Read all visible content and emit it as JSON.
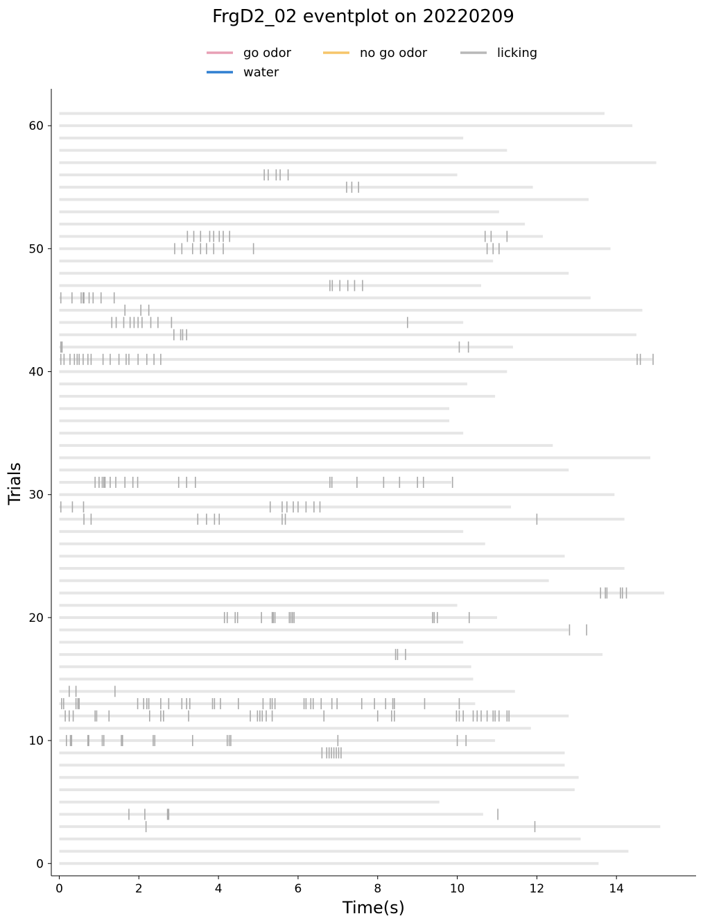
{
  "chart_data": {
    "type": "eventplot",
    "title": "FrgD2_02 eventplot on 20220209",
    "xlabel": "Time(s)",
    "ylabel": "Trials",
    "xlim": [
      -0.2,
      16
    ],
    "ylim": [
      -1,
      63
    ],
    "xticks": [
      0,
      2,
      4,
      6,
      8,
      10,
      12,
      14
    ],
    "yticks": [
      0,
      10,
      20,
      30,
      40,
      50,
      60
    ],
    "grid": false,
    "legend": {
      "position": "top-center",
      "entries": [
        {
          "name": "go odor",
          "color": "#e8a0b5",
          "kind": "line"
        },
        {
          "name": "no go odor",
          "color": "#f6c56a",
          "kind": "line"
        },
        {
          "name": "licking",
          "color": "#b8b8b8",
          "kind": "line"
        },
        {
          "name": "water",
          "color": "#2f7fd1",
          "kind": "line"
        }
      ]
    },
    "colors": {
      "trial_bar": "#e6e6e6",
      "lick": "#a9a9a9"
    },
    "trials": [
      {
        "trial": 0,
        "end": 13.55,
        "licks": []
      },
      {
        "trial": 1,
        "end": 14.3,
        "licks": []
      },
      {
        "trial": 2,
        "end": 13.1,
        "licks": []
      },
      {
        "trial": 3,
        "end": 15.1,
        "licks": [
          2.18,
          11.95
        ]
      },
      {
        "trial": 4,
        "end": 10.65,
        "licks": [
          1.75,
          2.15,
          2.72,
          2.75,
          11.02
        ]
      },
      {
        "trial": 5,
        "end": 9.55,
        "licks": []
      },
      {
        "trial": 6,
        "end": 12.95,
        "licks": []
      },
      {
        "trial": 7,
        "end": 13.05,
        "licks": []
      },
      {
        "trial": 8,
        "end": 12.7,
        "licks": []
      },
      {
        "trial": 9,
        "end": 12.7,
        "licks": [
          6.6,
          6.72,
          6.78,
          6.84,
          6.9,
          6.96,
          7.02,
          7.08
        ]
      },
      {
        "trial": 10,
        "end": 10.95,
        "licks": [
          0.18,
          0.28,
          0.31,
          0.72,
          0.74,
          1.08,
          1.12,
          1.56,
          1.59,
          2.36,
          2.4,
          3.35,
          4.22,
          4.27,
          4.31,
          7.0,
          10.0,
          10.22
        ]
      },
      {
        "trial": 11,
        "end": 11.85,
        "licks": []
      },
      {
        "trial": 12,
        "end": 12.8,
        "licks": [
          0.15,
          0.25,
          0.35,
          0.9,
          0.94,
          1.25,
          2.27,
          2.55,
          2.62,
          3.25,
          4.8,
          4.98,
          5.04,
          5.1,
          5.2,
          5.35,
          6.65,
          8.0,
          8.35,
          8.42,
          9.98,
          10.05,
          10.15,
          10.4,
          10.5,
          10.6,
          10.75,
          10.9,
          10.95,
          11.05,
          11.25,
          11.3
        ]
      },
      {
        "trial": 13,
        "end": 10.45,
        "licks": [
          0.06,
          0.11,
          0.42,
          0.47,
          0.5,
          1.97,
          2.12,
          2.2,
          2.25,
          2.55,
          2.75,
          3.08,
          3.2,
          3.28,
          3.85,
          3.9,
          4.05,
          4.5,
          5.12,
          5.3,
          5.35,
          5.42,
          6.15,
          6.2,
          6.32,
          6.38,
          6.58,
          6.85,
          6.98,
          7.6,
          7.92,
          8.2,
          8.38,
          8.42,
          9.18,
          10.05
        ]
      },
      {
        "trial": 14,
        "end": 11.45,
        "licks": [
          0.25,
          0.42,
          1.4
        ]
      },
      {
        "trial": 15,
        "end": 10.4,
        "licks": []
      },
      {
        "trial": 16,
        "end": 10.35,
        "licks": []
      },
      {
        "trial": 17,
        "end": 13.65,
        "licks": [
          8.45,
          8.5,
          8.7
        ]
      },
      {
        "trial": 18,
        "end": 10.15,
        "licks": []
      },
      {
        "trial": 19,
        "end": 12.8,
        "licks": [
          12.82,
          13.25
        ]
      },
      {
        "trial": 20,
        "end": 11.0,
        "licks": [
          4.15,
          4.22,
          4.42,
          4.48,
          5.08,
          5.35,
          5.38,
          5.42,
          5.78,
          5.82,
          5.86,
          5.9,
          9.38,
          9.42,
          9.5,
          10.3
        ]
      },
      {
        "trial": 21,
        "end": 10.0,
        "licks": []
      },
      {
        "trial": 22,
        "end": 15.2,
        "licks": [
          13.6,
          13.72,
          13.76,
          14.1,
          14.15,
          14.25
        ]
      },
      {
        "trial": 23,
        "end": 12.3,
        "licks": []
      },
      {
        "trial": 24,
        "end": 14.2,
        "licks": []
      },
      {
        "trial": 25,
        "end": 12.7,
        "licks": []
      },
      {
        "trial": 26,
        "end": 10.7,
        "licks": []
      },
      {
        "trial": 27,
        "end": 10.15,
        "licks": []
      },
      {
        "trial": 28,
        "end": 14.2,
        "licks": [
          0.62,
          0.8,
          3.48,
          3.7,
          3.9,
          4.02,
          5.6,
          5.68,
          12.0
        ]
      },
      {
        "trial": 29,
        "end": 11.35,
        "licks": [
          0.04,
          0.33,
          0.61,
          5.3,
          5.6,
          5.72,
          5.88,
          6.0,
          6.2,
          6.4,
          6.55
        ]
      },
      {
        "trial": 30,
        "end": 13.95,
        "licks": []
      },
      {
        "trial": 31,
        "end": 9.85,
        "licks": [
          0.9,
          1.0,
          1.08,
          1.12,
          1.15,
          1.28,
          1.42,
          1.65,
          1.85,
          1.97,
          3.0,
          3.2,
          3.42,
          6.8,
          6.85,
          7.48,
          8.15,
          8.55,
          9.0,
          9.15,
          9.88
        ]
      },
      {
        "trial": 32,
        "end": 12.8,
        "licks": []
      },
      {
        "trial": 33,
        "end": 14.85,
        "licks": []
      },
      {
        "trial": 34,
        "end": 12.4,
        "licks": []
      },
      {
        "trial": 35,
        "end": 10.15,
        "licks": []
      },
      {
        "trial": 36,
        "end": 9.8,
        "licks": []
      },
      {
        "trial": 37,
        "end": 9.8,
        "licks": []
      },
      {
        "trial": 38,
        "end": 10.95,
        "licks": []
      },
      {
        "trial": 39,
        "end": 10.25,
        "licks": []
      },
      {
        "trial": 40,
        "end": 11.25,
        "licks": []
      },
      {
        "trial": 41,
        "end": 14.9,
        "licks": [
          0.04,
          0.12,
          0.27,
          0.38,
          0.45,
          0.5,
          0.6,
          0.72,
          0.8,
          1.1,
          1.28,
          1.5,
          1.68,
          1.75,
          1.98,
          2.2,
          2.38,
          2.55,
          14.52,
          14.6,
          14.92
        ]
      },
      {
        "trial": 42,
        "end": 11.4,
        "licks": [
          0.04,
          0.07,
          10.05,
          10.28
        ]
      },
      {
        "trial": 43,
        "end": 14.5,
        "licks": [
          2.88,
          3.05,
          3.1,
          3.2
        ]
      },
      {
        "trial": 44,
        "end": 10.15,
        "licks": [
          1.32,
          1.43,
          1.62,
          1.78,
          1.88,
          1.98,
          2.08,
          2.3,
          2.48,
          2.82,
          8.75
        ]
      },
      {
        "trial": 45,
        "end": 14.65,
        "licks": [
          1.65,
          2.05,
          2.25
        ]
      },
      {
        "trial": 46,
        "end": 13.35,
        "licks": [
          0.04,
          0.32,
          0.55,
          0.6,
          0.62,
          0.75,
          0.85,
          1.05,
          1.38
        ]
      },
      {
        "trial": 47,
        "end": 10.6,
        "licks": [
          6.8,
          6.86,
          7.05,
          7.25,
          7.42,
          7.62
        ]
      },
      {
        "trial": 48,
        "end": 12.8,
        "licks": []
      },
      {
        "trial": 49,
        "end": 10.9,
        "licks": []
      },
      {
        "trial": 50,
        "end": 13.85,
        "licks": [
          2.9,
          3.08,
          3.35,
          3.55,
          3.7,
          3.88,
          4.12,
          4.88,
          10.75,
          10.9,
          11.05
        ]
      },
      {
        "trial": 51,
        "end": 12.15,
        "licks": [
          3.22,
          3.38,
          3.55,
          3.78,
          3.88,
          4.02,
          4.12,
          4.28,
          10.7,
          10.85,
          11.25
        ]
      },
      {
        "trial": 52,
        "end": 11.7,
        "licks": []
      },
      {
        "trial": 53,
        "end": 11.05,
        "licks": []
      },
      {
        "trial": 54,
        "end": 13.3,
        "licks": []
      },
      {
        "trial": 55,
        "end": 11.9,
        "licks": [
          7.22,
          7.35,
          7.52
        ]
      },
      {
        "trial": 56,
        "end": 10.0,
        "licks": [
          5.15,
          5.25,
          5.45,
          5.55,
          5.75
        ]
      },
      {
        "trial": 57,
        "end": 15.0,
        "licks": []
      },
      {
        "trial": 58,
        "end": 11.25,
        "licks": []
      },
      {
        "trial": 59,
        "end": 10.15,
        "licks": []
      },
      {
        "trial": 60,
        "end": 14.4,
        "licks": []
      },
      {
        "trial": 61,
        "end": 13.7,
        "licks": []
      }
    ]
  }
}
